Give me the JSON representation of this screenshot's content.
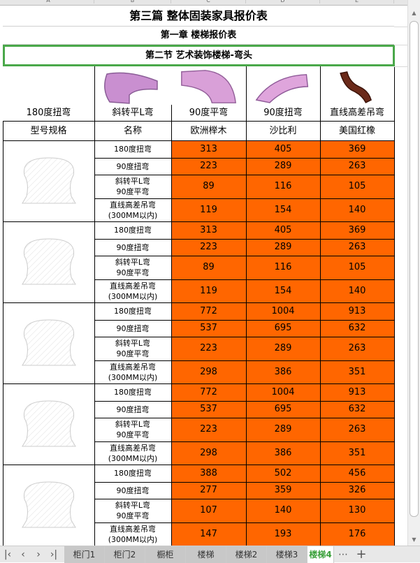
{
  "columns": [
    "A",
    "B",
    "C",
    "D",
    "E"
  ],
  "title": "第三篇  整体固装家具报价表",
  "chapter": "第一章  楼梯报价表",
  "section": "第二节  艺术装饰楼梯-弯头",
  "product_labels": [
    "180度扭弯",
    "斜转平L弯",
    "90度平弯",
    "90度扭弯",
    "直线高差吊弯"
  ],
  "headers": [
    "型号规格",
    "名称",
    "欧洲榉木",
    "沙比利",
    "美国红橡"
  ],
  "names": [
    "180度扭弯",
    "90度扭弯",
    "斜转平L弯\n90度平弯",
    "直线高差吊弯\n(300MM以内)"
  ],
  "groups": [
    {
      "rows": [
        [
          313,
          405,
          369
        ],
        [
          223,
          289,
          263
        ],
        [
          89,
          116,
          105
        ],
        [
          119,
          154,
          140
        ]
      ]
    },
    {
      "rows": [
        [
          313,
          405,
          369
        ],
        [
          223,
          289,
          263
        ],
        [
          89,
          116,
          105
        ],
        [
          119,
          154,
          140
        ]
      ]
    },
    {
      "rows": [
        [
          772,
          1004,
          913
        ],
        [
          537,
          695,
          632
        ],
        [
          223,
          289,
          263
        ],
        [
          298,
          386,
          351
        ]
      ]
    },
    {
      "rows": [
        [
          772,
          1004,
          913
        ],
        [
          537,
          695,
          632
        ],
        [
          223,
          289,
          263
        ],
        [
          298,
          386,
          351
        ]
      ]
    },
    {
      "rows": [
        [
          388,
          502,
          456
        ],
        [
          277,
          359,
          326
        ],
        [
          107,
          140,
          130
        ],
        [
          147,
          193,
          176
        ]
      ]
    }
  ],
  "sheet_tabs": [
    "柜门1",
    "柜门2",
    "橱柜",
    "楼梯",
    "楼梯2",
    "楼梯3",
    "楼梯4"
  ],
  "active_tab": "楼梯4",
  "colors": {
    "price_fill": "#ff6600",
    "selection": "#4aa84a"
  }
}
